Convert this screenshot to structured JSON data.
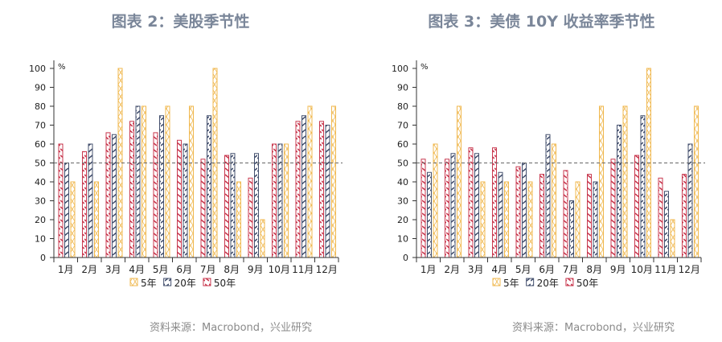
{
  "colors": {
    "5年": "#f0b84f",
    "20年": "#44506e",
    "50年": "#c8394f",
    "axis": "#333333",
    "reference": "#666666"
  },
  "chart_data": [
    {
      "type": "bar",
      "title": "图表 2：美股季节性",
      "source": "资料来源：Macrobond，兴业研究",
      "unit": "%",
      "categories": [
        "1月",
        "2月",
        "3月",
        "4月",
        "5月",
        "6月",
        "7月",
        "8月",
        "9月",
        "10月",
        "11月",
        "12月"
      ],
      "ylim": [
        0,
        100
      ],
      "yticks": [
        0,
        10,
        20,
        30,
        40,
        50,
        60,
        70,
        80,
        90,
        100
      ],
      "reference_line": 50,
      "legend": "bottom",
      "series": [
        {
          "name": "50年",
          "values": [
            60,
            56,
            66,
            72,
            66,
            62,
            52,
            54,
            42,
            60,
            72,
            72
          ]
        },
        {
          "name": "20年",
          "values": [
            50,
            60,
            65,
            80,
            75,
            60,
            75,
            55,
            55,
            60,
            75,
            70
          ]
        },
        {
          "name": "5年",
          "values": [
            40,
            40,
            100,
            80,
            80,
            80,
            100,
            40,
            20,
            60,
            80,
            80
          ]
        }
      ]
    },
    {
      "type": "bar",
      "title": "图表 3：美债 10Y 收益率季节性",
      "source": "资料来源：Macrobond，兴业研究",
      "unit": "%",
      "categories": [
        "1月",
        "2月",
        "3月",
        "4月",
        "5月",
        "6月",
        "7月",
        "8月",
        "9月",
        "10月",
        "11月",
        "12月"
      ],
      "ylim": [
        0,
        100
      ],
      "yticks": [
        0,
        10,
        20,
        30,
        40,
        50,
        60,
        70,
        80,
        90,
        100
      ],
      "reference_line": 50,
      "legend": "bottom",
      "series": [
        {
          "name": "50年",
          "values": [
            52,
            52,
            58,
            58,
            48,
            44,
            46,
            44,
            52,
            54,
            42,
            44
          ]
        },
        {
          "name": "20年",
          "values": [
            45,
            55,
            55,
            45,
            50,
            65,
            30,
            40,
            70,
            75,
            35,
            60
          ]
        },
        {
          "name": "5年",
          "values": [
            60,
            80,
            40,
            40,
            40,
            60,
            40,
            80,
            80,
            100,
            20,
            80
          ]
        }
      ]
    }
  ],
  "legend_order": [
    "5年",
    "20年",
    "50年"
  ]
}
